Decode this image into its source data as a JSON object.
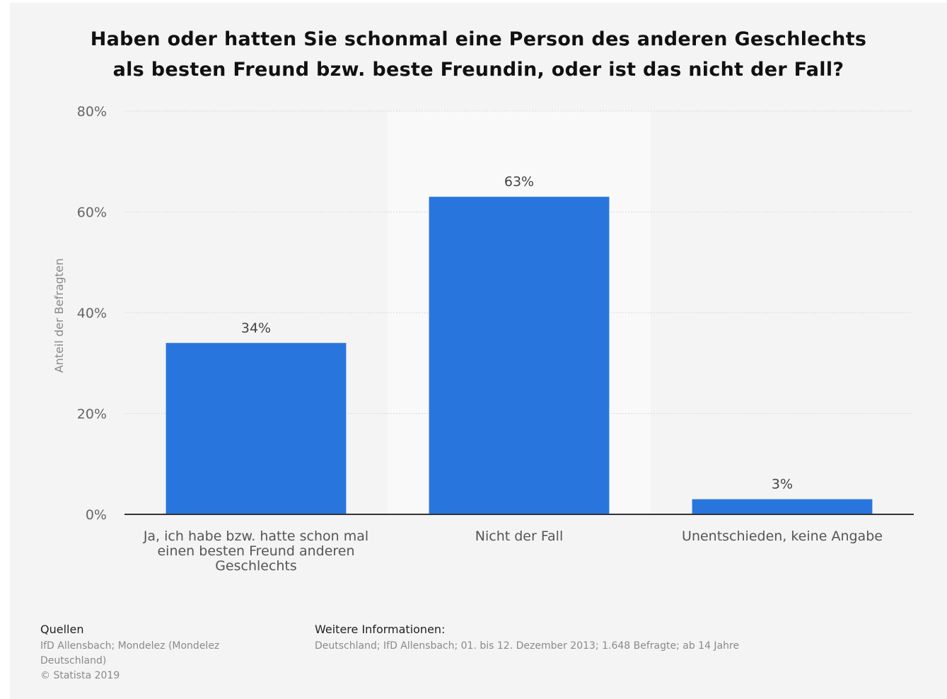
{
  "chart_data": {
    "type": "bar",
    "title_lines": [
      "Haben oder hatten Sie schonmal eine Person des anderen Geschlechts",
      "als besten Freund bzw. beste Freundin, oder ist das nicht der Fall?"
    ],
    "categories": [
      [
        "Ja, ich habe bzw. hatte schon mal",
        "einen besten Freund anderen",
        "Geschlechts"
      ],
      [
        "Nicht der Fall"
      ],
      [
        "Unentschieden, keine Angabe"
      ]
    ],
    "values": [
      34,
      63,
      3
    ],
    "data_labels": [
      "34%",
      "63%",
      "3%"
    ],
    "ylabel": "Anteil der Befragten",
    "ylim": [
      0,
      80
    ],
    "yticks": [
      0,
      20,
      40,
      60,
      80
    ],
    "ytick_labels": [
      "0%",
      "20%",
      "40%",
      "60%",
      "80%"
    ],
    "bar_color": "#2876dd",
    "highlight_category_index": 1,
    "grid": true
  },
  "footer": {
    "sources_title": "Quellen",
    "sources_lines": [
      "IfD Allensbach; Mondelez (Mondelez",
      "Deutschland)",
      "© Statista 2019"
    ],
    "info_title": "Weitere Informationen:",
    "info_text": "Deutschland; IfD Allensbach; 01. bis 12. Dezember 2013; 1.648 Befragte; ab 14 Jahre"
  }
}
